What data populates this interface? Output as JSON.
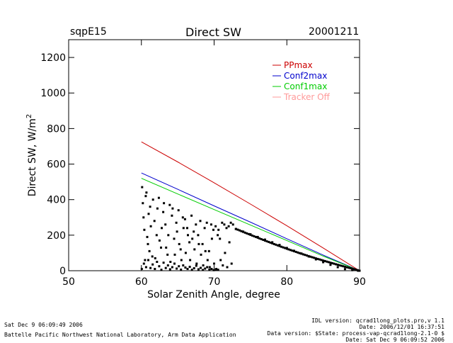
{
  "header": {
    "site": "sqpE15",
    "title": "Direct SW",
    "date": "20001211"
  },
  "footer": {
    "left_time": "Sat Dec  9 06:09:49 2006",
    "left_org": "Battelle Pacific Northwest National Laboratory, Arm Data Application",
    "right_lines": [
      "IDL version: qcrad1long_plots.pro,v 1.1",
      "Date: 2006/12/01 16:37:51",
      "Data version: $State: process-vap-qcrad1long-2.1-0 $",
      "Date: Sat Dec  9 06:09:52 2006"
    ]
  },
  "chart_data": {
    "type": "scatter",
    "title": "Direct SW",
    "xlabel": "Solar Zenith Angle, degree",
    "ylabel": "Direct SW, W/m",
    "ylabel_superscript": "2",
    "xlim": [
      50,
      90
    ],
    "ylim": [
      0,
      1300
    ],
    "x_ticks": [
      50,
      60,
      70,
      80,
      90
    ],
    "y_ticks": [
      0,
      200,
      400,
      600,
      800,
      1000,
      1200
    ],
    "grid": false,
    "legend_position": "top-right",
    "legend": [
      {
        "label": "PPmax",
        "color": "#cc0000"
      },
      {
        "label": "Conf2max",
        "color": "#0000cc"
      },
      {
        "label": "Conf1max",
        "color": "#00cc00"
      },
      {
        "label": "Tracker Off",
        "color": "#ff9a9a"
      }
    ],
    "series": [
      {
        "name": "PPmax",
        "type": "line",
        "color": "#cc0000",
        "x": [
          60,
          65,
          70,
          75,
          80,
          85,
          90
        ],
        "y": [
          725,
          612,
          495,
          375,
          253,
          128,
          0
        ]
      },
      {
        "name": "Conf2max",
        "type": "line",
        "color": "#0000cc",
        "x": [
          60,
          65,
          70,
          75,
          80,
          85,
          90
        ],
        "y": [
          550,
          458,
          365,
          273,
          180,
          88,
          0
        ]
      },
      {
        "name": "Conf1max",
        "type": "line",
        "color": "#00cc00",
        "x": [
          60,
          65,
          70,
          75,
          80,
          85,
          90
        ],
        "y": [
          520,
          432,
          344,
          257,
          170,
          82,
          0
        ]
      },
      {
        "name": "Direct SW",
        "type": "scatter",
        "color": "#000000",
        "x": [
          73,
          74,
          75,
          76,
          77,
          78,
          79,
          80,
          81,
          82,
          83,
          84,
          85,
          86,
          87,
          88,
          89,
          89.8,
          60.1,
          60.3,
          60.6,
          60.9,
          61.2,
          61.5,
          61.8,
          62.1,
          62.4,
          62.7,
          63.0,
          63.3,
          63.6,
          63.9,
          64.2,
          64.5,
          64.8,
          65.1,
          65.4,
          65.7,
          66.0,
          66.3,
          66.6,
          66.9,
          67.2,
          67.5,
          67.8,
          68.1,
          68.4,
          68.7,
          69.0,
          69.3,
          69.6,
          69.9,
          70.2,
          70.5,
          70.8,
          71.1,
          71.4,
          71.7,
          72.0,
          72.3,
          72.6,
          60.2,
          60.4,
          60.5,
          60.7,
          60.8,
          61.0,
          61.1,
          61.3,
          61.6,
          61.9,
          62.2,
          62.5,
          62.8,
          63.1,
          63.4,
          63.7,
          64.0,
          64.3,
          64.6,
          64.9,
          65.2,
          65.5,
          65.8,
          66.1,
          66.4,
          66.7,
          67.0,
          67.3,
          67.6,
          67.9,
          68.2,
          68.5,
          68.8,
          69.1,
          69.4,
          69.7,
          70.0,
          70.3,
          70.6,
          70.9,
          71.2,
          71.5,
          71.8,
          72.1,
          72.4,
          60.05,
          60.35,
          60.65,
          60.95,
          61.25,
          61.55,
          61.85,
          62.15,
          62.45,
          62.75,
          63.05,
          63.35,
          63.65,
          63.95,
          64.25,
          64.55,
          64.85,
          65.15,
          65.45,
          65.75,
          66.05,
          66.35,
          66.65,
          66.95,
          67.25,
          67.55,
          67.85,
          68.15,
          68.45,
          68.75,
          69.05,
          69.35,
          69.65,
          69.95,
          70.25,
          70.55
        ],
        "y": [
          235,
          220,
          205,
          190,
          175,
          160,
          145,
          128,
          112,
          97,
          80,
          64,
          48,
          33,
          20,
          9,
          3,
          0,
          470,
          300,
          420,
          150,
          360,
          80,
          280,
          200,
          410,
          130,
          330,
          260,
          90,
          370,
          310,
          180,
          270,
          340,
          120,
          300,
          290,
          240,
          160,
          310,
          220,
          260,
          200,
          280,
          150,
          240,
          270,
          110,
          260,
          230,
          250,
          200,
          180,
          270,
          260,
          240,
          250,
          270,
          260,
          380,
          230,
          60,
          440,
          190,
          320,
          110,
          250,
          400,
          70,
          350,
          170,
          240,
          380,
          130,
          200,
          50,
          350,
          90,
          220,
          150,
          60,
          240,
          100,
          200,
          60,
          180,
          120,
          40,
          150,
          90,
          30,
          110,
          60,
          20,
          180,
          40,
          10,
          230,
          60,
          30,
          100,
          20,
          160,
          40,
          10,
          40,
          20,
          60,
          15,
          35,
          10,
          50,
          25,
          5,
          45,
          15,
          30,
          8,
          20,
          40,
          12,
          25,
          6,
          30,
          18,
          10,
          22,
          5,
          14,
          28,
          8,
          16,
          4,
          12,
          20,
          6,
          10,
          3,
          8,
          5
        ]
      }
    ]
  }
}
